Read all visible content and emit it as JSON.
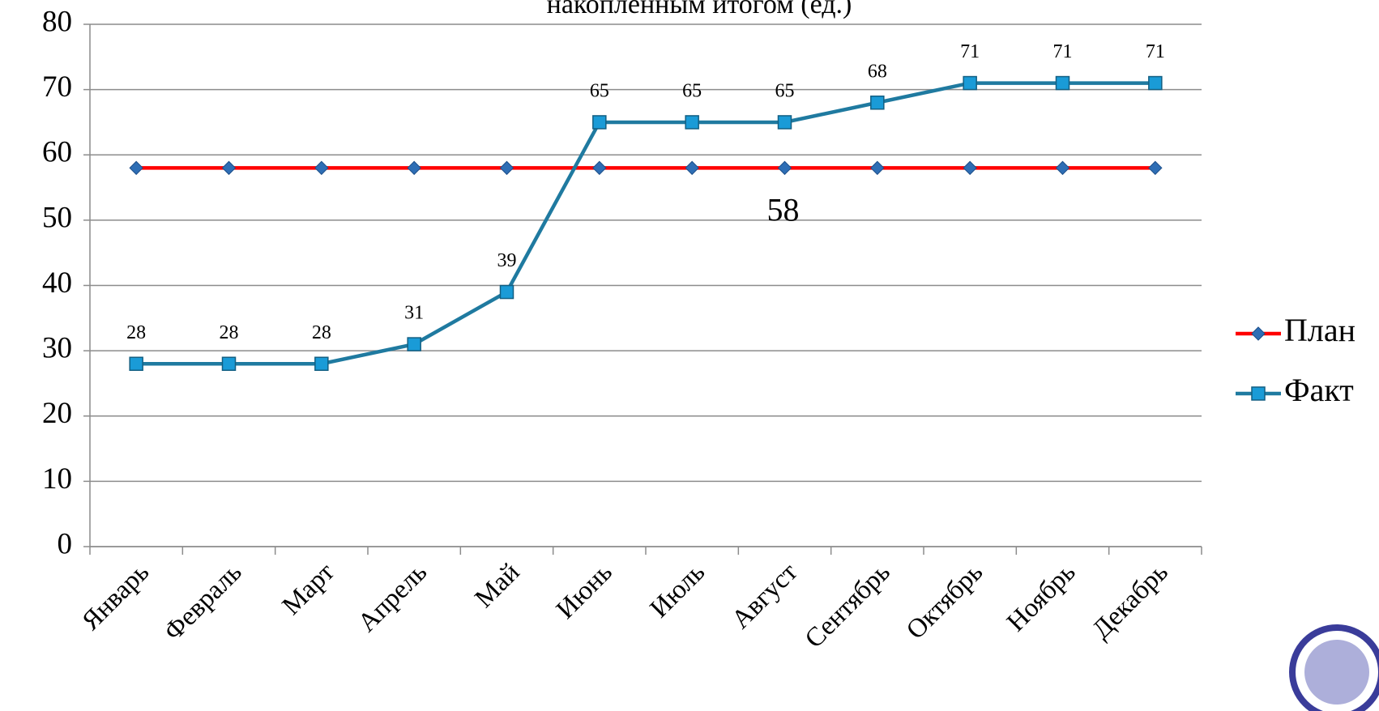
{
  "chart_data": {
    "type": "line",
    "title": "накопленным итогом (ед.)",
    "categories": [
      "Январь",
      "Февраль",
      "Март",
      "Апрель",
      "Май",
      "Июнь",
      "Июль",
      "Август",
      "Сентябрь",
      "Октябрь",
      "Ноябрь",
      "Декабрь"
    ],
    "series": [
      {
        "name": "План",
        "color": "#ff0000",
        "marker_color": "#2e6eb5",
        "marker": "diamond",
        "values": [
          58,
          58,
          58,
          58,
          58,
          58,
          58,
          58,
          58,
          58,
          58,
          58
        ],
        "labeled_index": 7
      },
      {
        "name": "Факт",
        "color": "#1f7aa0",
        "marker_color": "#1a9bd7",
        "marker": "square",
        "values": [
          28,
          28,
          28,
          31,
          39,
          65,
          65,
          65,
          68,
          71,
          71,
          71
        ],
        "labels": true
      }
    ],
    "ylim": [
      0,
      80
    ],
    "yticks": [
      0,
      10,
      20,
      30,
      40,
      50,
      60,
      70,
      80
    ],
    "grid": true,
    "legend": "right"
  }
}
